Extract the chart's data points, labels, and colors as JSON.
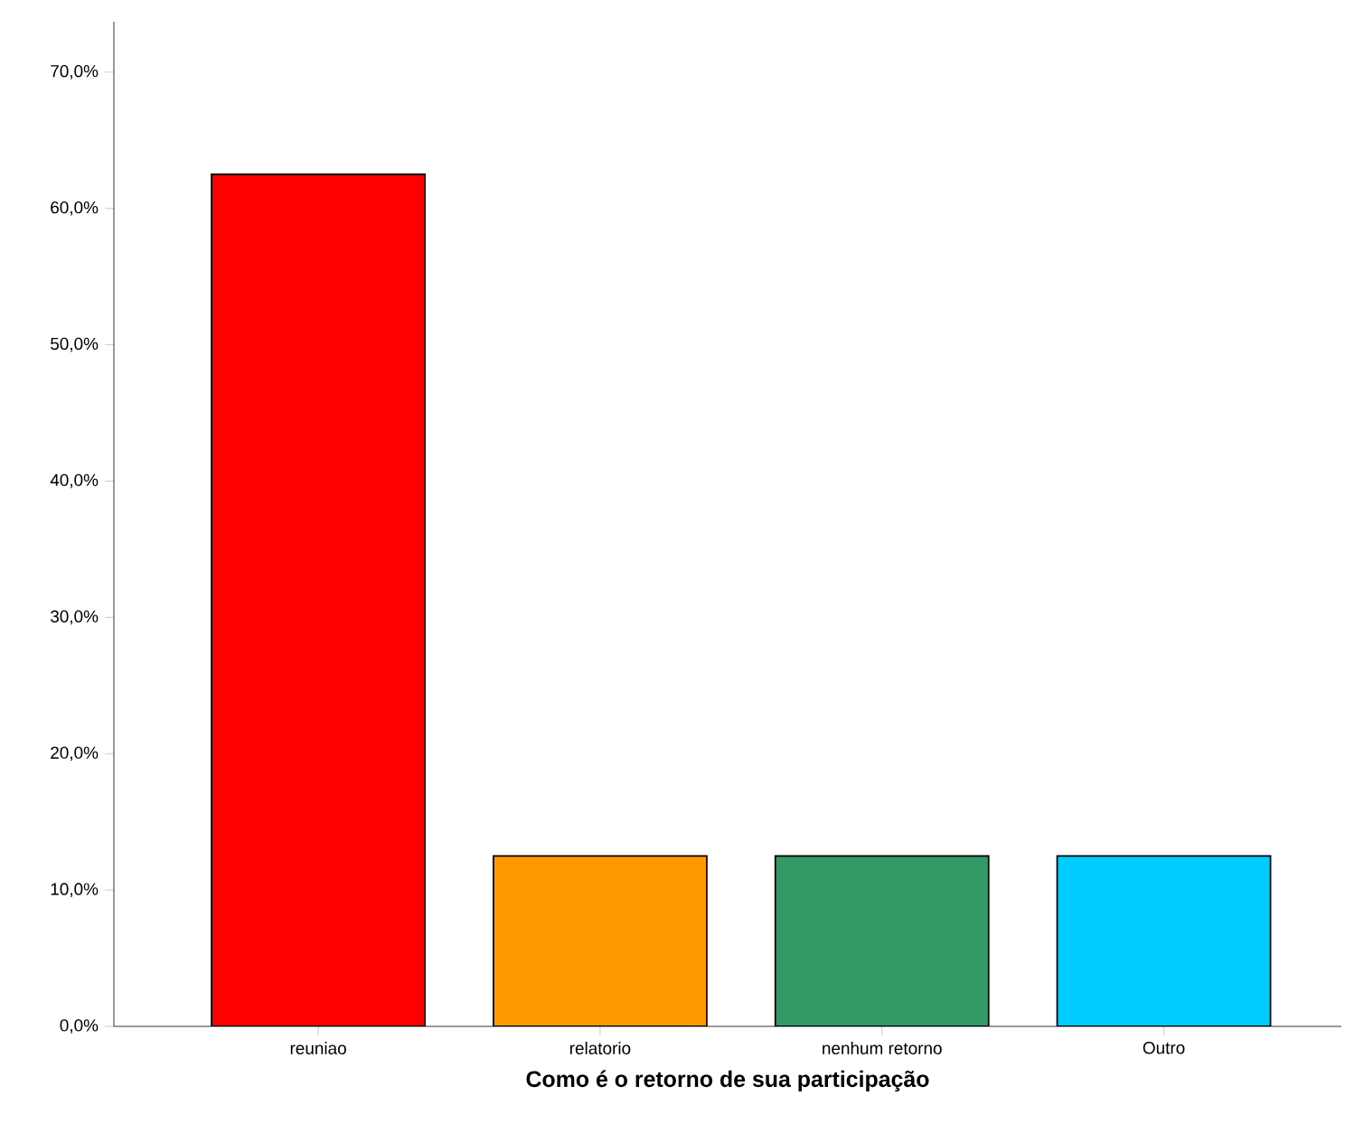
{
  "chart_data": {
    "type": "bar",
    "xlabel": "Como é o retorno de sua participação",
    "categories": [
      "reuniao",
      "relatorio",
      "nenhum retorno",
      "Outro"
    ],
    "values": [
      62.5,
      12.5,
      12.5,
      12.5
    ],
    "colors": [
      "#ff0000",
      "#ff9900",
      "#339966",
      "#00ccff"
    ],
    "ylim": [
      0,
      73.7
    ],
    "yticks": [
      {
        "value": 0,
        "label": "0,0%"
      },
      {
        "value": 10,
        "label": "10,0%"
      },
      {
        "value": 20,
        "label": "20,0%"
      },
      {
        "value": 30,
        "label": "30,0%"
      },
      {
        "value": 40,
        "label": "40,0%"
      },
      {
        "value": 50,
        "label": "50,0%"
      },
      {
        "value": 60,
        "label": "60,0%"
      },
      {
        "value": 70,
        "label": "70,0%"
      }
    ]
  }
}
